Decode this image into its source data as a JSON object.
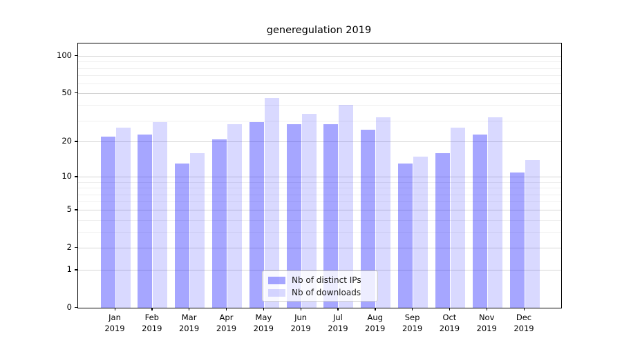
{
  "chart_data": {
    "type": "bar",
    "title": "generegulation 2019",
    "categories": [
      "Jan",
      "Feb",
      "Mar",
      "Apr",
      "May",
      "Jun",
      "Jul",
      "Aug",
      "Sep",
      "Oct",
      "Nov",
      "Dec"
    ],
    "year_label": "2019",
    "series": [
      {
        "name": "Nb of distinct IPs",
        "color": "rgba(0,0,255,0.35)",
        "values": [
          22,
          23,
          13,
          21,
          29,
          28,
          28,
          25,
          13,
          16,
          23,
          11
        ]
      },
      {
        "name": "Nb of downloads",
        "color": "rgba(0,0,255,0.15)",
        "values": [
          26,
          29,
          16,
          28,
          46,
          34,
          40,
          32,
          15,
          26,
          32,
          14
        ]
      }
    ],
    "xlabel": "",
    "ylabel": "",
    "yscale": "log1p",
    "ylim": [
      0,
      126
    ],
    "yticks": [
      0,
      1,
      2,
      5,
      10,
      20,
      50,
      100
    ],
    "minor_gridlines": [
      3,
      4,
      6,
      7,
      8,
      9,
      30,
      40,
      60,
      70,
      80,
      90
    ],
    "grid": true,
    "legend_position": "lower center",
    "colors": {
      "axis": "#000000",
      "major_grid": "#d4d4d4",
      "minor_grid": "#efefef"
    }
  }
}
